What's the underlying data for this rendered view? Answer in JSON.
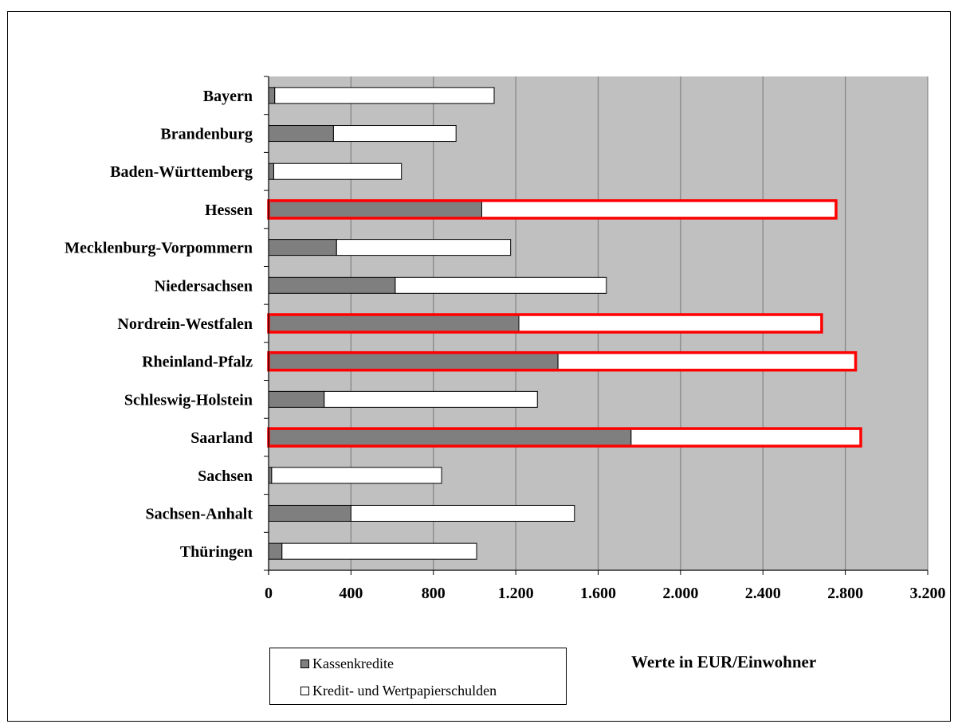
{
  "chart_data": {
    "type": "bar",
    "orientation": "horizontal",
    "stacked": true,
    "categories": [
      "Bayern",
      "Brandenburg",
      "Baden-Württemberg",
      "Hessen",
      "Mecklenburg-Vorpommern",
      "Niedersachsen",
      "Nordrein-Westfalen",
      "Rheinland-Pfalz",
      "Schleswig-Holstein",
      "Saarland",
      "Sachsen",
      "Sachsen-Anhalt",
      "Thüringen"
    ],
    "series": [
      {
        "name": "Kassenkredite",
        "values": [
          30,
          315,
          25,
          1035,
          330,
          615,
          1215,
          1405,
          270,
          1760,
          15,
          400,
          65
        ],
        "color": "#7f7f7f"
      },
      {
        "name": "Kredit- und Wertpapierschulden",
        "values": [
          1065,
          595,
          620,
          1720,
          845,
          1025,
          1470,
          1445,
          1035,
          1115,
          825,
          1085,
          945
        ],
        "color": "#ffffff"
      }
    ],
    "highlighted": [
      "Hessen",
      "Nordrein-Westfalen",
      "Rheinland-Pfalz",
      "Saarland"
    ],
    "highlight_color": "#ff0000",
    "xlim": [
      0,
      3200
    ],
    "xticks": [
      0,
      400,
      800,
      1200,
      1600,
      2000,
      2400,
      2800,
      3200
    ],
    "xtick_labels": [
      "0",
      "400",
      "800",
      "1.200",
      "1.600",
      "2.000",
      "2.400",
      "2.800",
      "3.200"
    ],
    "grid": true,
    "plot_background": "#c0c0c0",
    "legend_position": "bottom-left",
    "annotation": "Werte in EUR/Einwohner"
  }
}
